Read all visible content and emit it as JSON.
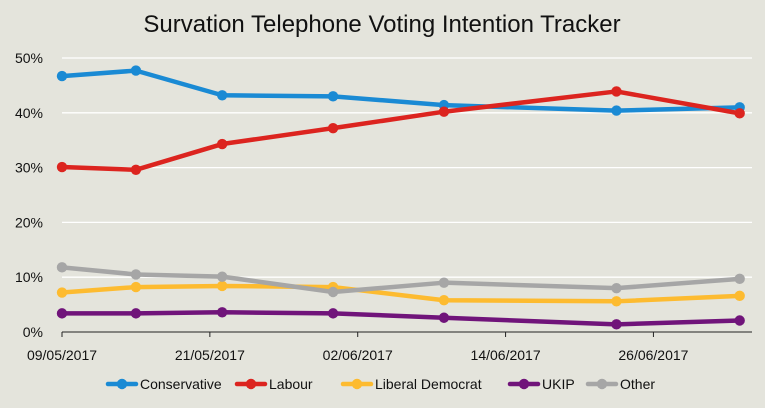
{
  "chart_data": {
    "type": "line",
    "title": "Survation Telephone Voting Intention Tracker",
    "xlabel": "",
    "ylabel": "",
    "x": [
      "2017-05-09",
      "2017-05-15",
      "2017-05-22",
      "2017-05-31",
      "2017-06-09",
      "2017-06-23",
      "2017-07-03"
    ],
    "x_ticks": [
      {
        "date": "2017-05-09",
        "label": "09/05/2017"
      },
      {
        "date": "2017-05-21",
        "label": "21/05/2017"
      },
      {
        "date": "2017-06-02",
        "label": "02/06/2017"
      },
      {
        "date": "2017-06-14",
        "label": "14/06/2017"
      },
      {
        "date": "2017-06-26",
        "label": "26/06/2017"
      }
    ],
    "xlim": [
      "2017-05-09",
      "2017-07-04"
    ],
    "ylim": [
      0,
      50
    ],
    "y_ticks": [
      {
        "value": 0,
        "label": "0%"
      },
      {
        "value": 10,
        "label": "10%"
      },
      {
        "value": 20,
        "label": "20%"
      },
      {
        "value": 30,
        "label": "30%"
      },
      {
        "value": 40,
        "label": "40%"
      },
      {
        "value": 50,
        "label": "50%"
      }
    ],
    "grid": true,
    "legend_position": "bottom",
    "series": [
      {
        "name": "Conservative",
        "color": "#1a8ad4",
        "values": [
          46.7,
          47.7,
          43.2,
          43.0,
          41.4,
          40.4,
          41.0
        ]
      },
      {
        "name": "Labour",
        "color": "#dc241f",
        "values": [
          30.1,
          29.6,
          34.3,
          37.2,
          40.2,
          43.9,
          39.9
        ]
      },
      {
        "name": "Liberal Democrat",
        "color": "#fdbb30",
        "values": [
          7.2,
          8.2,
          8.4,
          8.2,
          5.8,
          5.6,
          6.6
        ]
      },
      {
        "name": "UKIP",
        "color": "#70147a",
        "values": [
          3.4,
          3.4,
          3.6,
          3.4,
          2.6,
          1.4,
          2.1
        ]
      },
      {
        "name": "Other",
        "color": "#a6a6a6",
        "values": [
          11.8,
          10.5,
          10.1,
          7.3,
          9.0,
          8.0,
          9.7
        ]
      }
    ]
  }
}
